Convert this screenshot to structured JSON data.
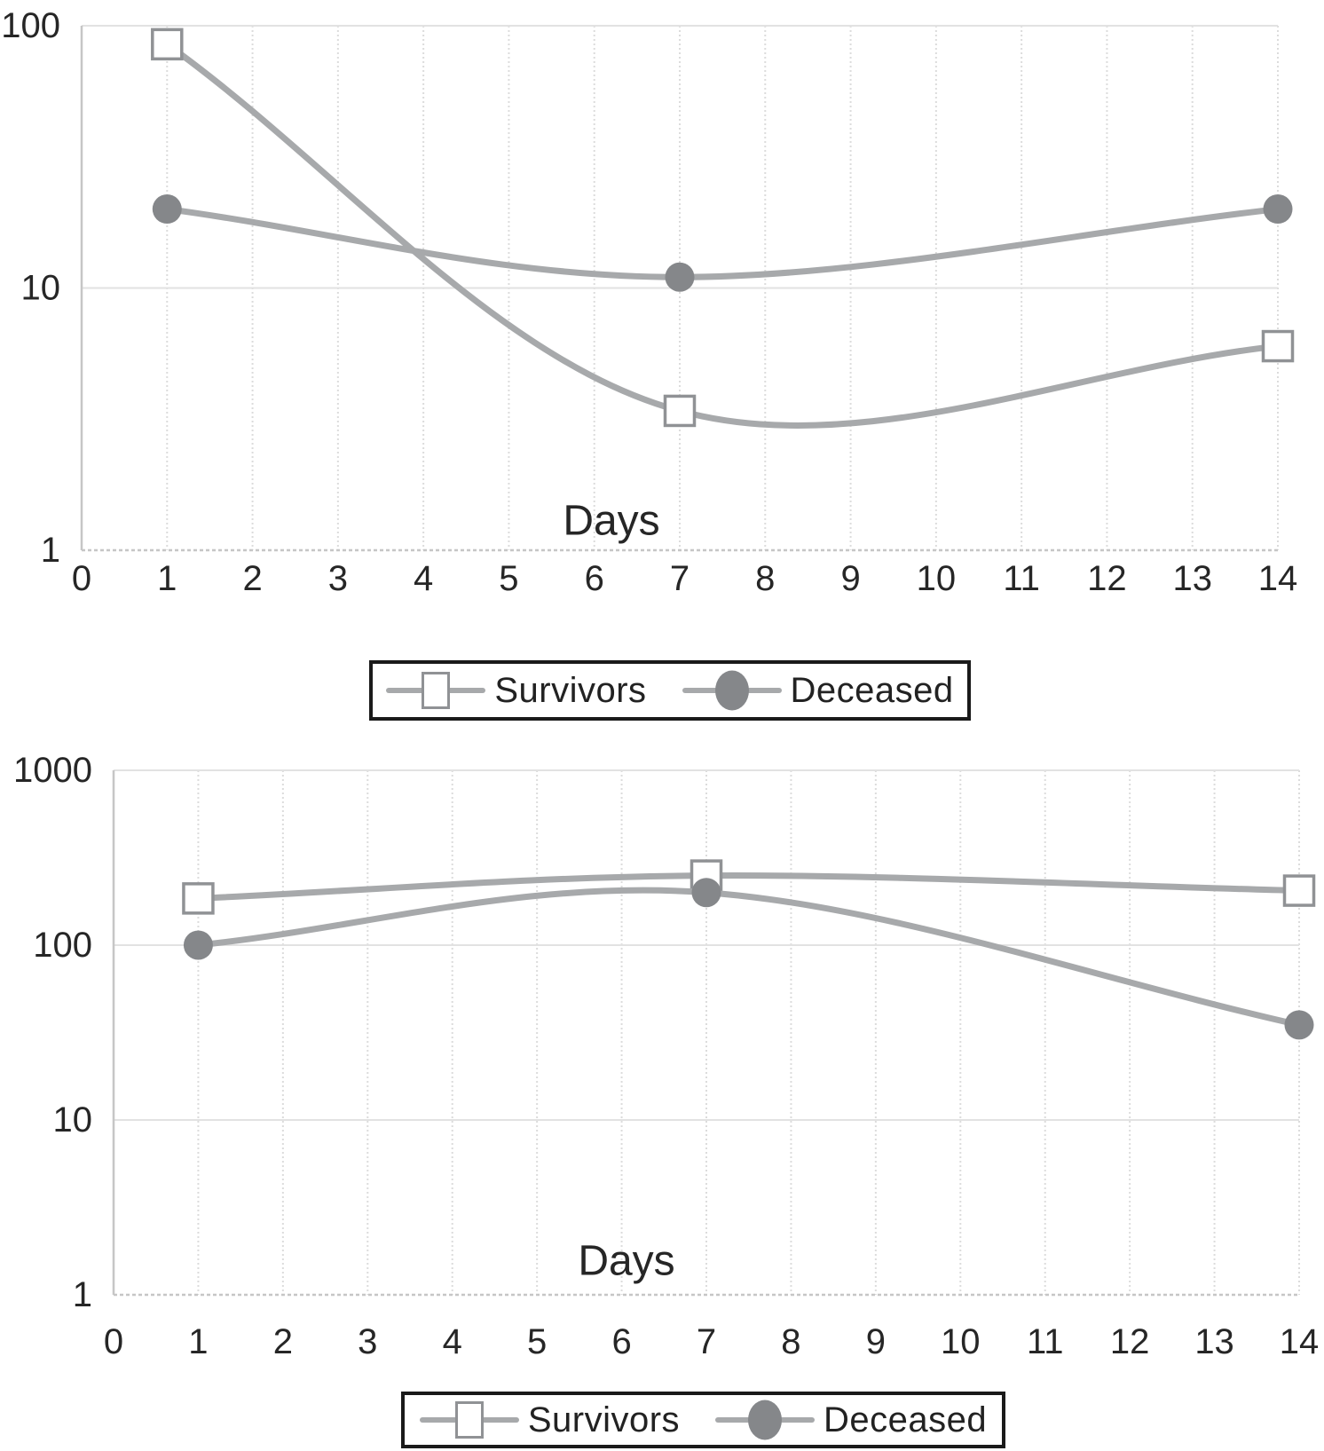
{
  "page": {
    "background": "#ffffff"
  },
  "colors": {
    "line": "#a7a9ab",
    "marker_circle_fill": "#85878a",
    "marker_square_stroke": "#909295",
    "marker_square_fill": "#ffffff",
    "grid": "#dcdcdc",
    "grid_decade": "#e2e2e2",
    "axis_border": "#c6c6c6",
    "axis_text": "#262626",
    "legend_border": "#1a1a1a"
  },
  "chart_data": [
    {
      "type": "line",
      "y_scale": "log",
      "xlabel": "Days",
      "xlim": [
        0,
        14
      ],
      "ylim": [
        1,
        100
      ],
      "x_ticks": [
        0,
        1,
        2,
        3,
        4,
        5,
        6,
        7,
        8,
        9,
        10,
        11,
        12,
        13,
        14
      ],
      "y_ticks": [
        1,
        10,
        100
      ],
      "grid": true,
      "legend_position": "bottom",
      "x": [
        1,
        7,
        14
      ],
      "series": [
        {
          "name": "Survivors",
          "marker": "open-square",
          "values": [
            85,
            3.4,
            6
          ]
        },
        {
          "name": "Deceased",
          "marker": "filled-circle",
          "values": [
            20,
            11,
            20
          ]
        }
      ]
    },
    {
      "type": "line",
      "y_scale": "log",
      "xlabel": "Days",
      "xlim": [
        0,
        14
      ],
      "ylim": [
        1,
        1000
      ],
      "x_ticks": [
        0,
        1,
        2,
        3,
        4,
        5,
        6,
        7,
        8,
        9,
        10,
        11,
        12,
        13,
        14
      ],
      "y_ticks": [
        1,
        10,
        100,
        1000
      ],
      "grid": true,
      "legend_position": "bottom",
      "x": [
        1,
        7,
        14
      ],
      "series": [
        {
          "name": "Survivors",
          "marker": "open-square",
          "values": [
            185,
            250,
            205
          ]
        },
        {
          "name": "Deceased",
          "marker": "filled-circle",
          "values": [
            100,
            200,
            35
          ]
        }
      ]
    }
  ]
}
